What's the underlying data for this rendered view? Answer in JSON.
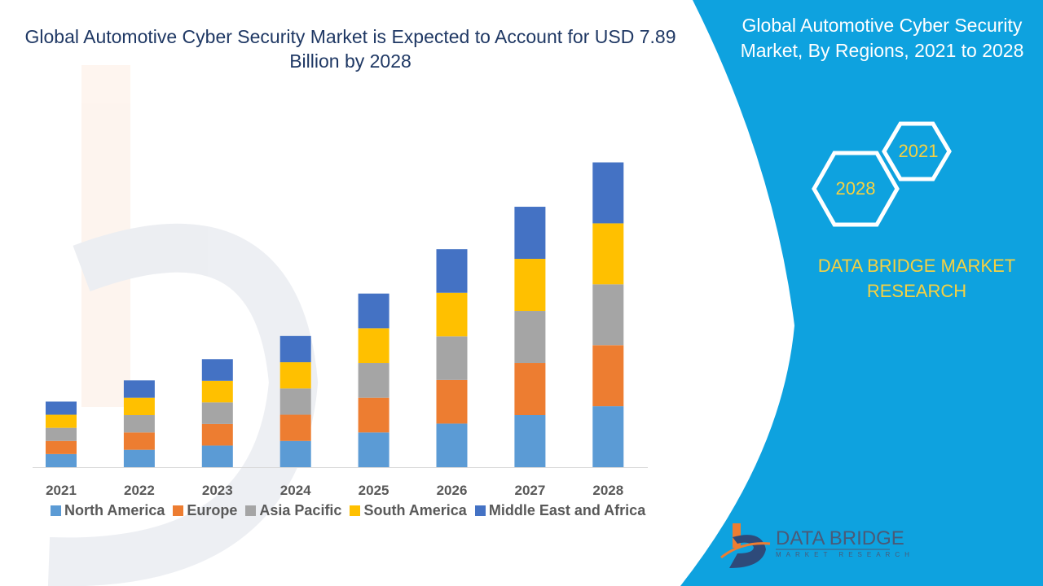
{
  "title": "Global Automotive Cyber Security Market is Expected to Account for USD 7.89 Billion by 2028",
  "side_panel": {
    "title": "Global Automotive Cyber Security Market, By Regions, 2021 to 2028",
    "hex_labels": [
      "2021",
      "2028"
    ],
    "brand": "DATA BRIDGE MARKET RESEARCH",
    "logo_text": "DATA BRIDGE",
    "logo_subtext": "MARKET RESEARCH",
    "color": "#0ea2df"
  },
  "chart_data": {
    "type": "bar",
    "stacked": true,
    "title": "Global Automotive Cyber Security Market is Expected to Account for USD 7.89 Billion by 2028",
    "categories": [
      "2021",
      "2022",
      "2023",
      "2024",
      "2025",
      "2026",
      "2027",
      "2028"
    ],
    "series": [
      {
        "name": "North America",
        "color": "#5b9bd5",
        "values": [
          0.34,
          0.45,
          0.56,
          0.68,
          0.9,
          1.13,
          1.35,
          1.58
        ]
      },
      {
        "name": "Europe",
        "color": "#ed7d31",
        "values": [
          0.34,
          0.45,
          0.56,
          0.68,
          0.9,
          1.13,
          1.35,
          1.58
        ]
      },
      {
        "name": "Asia Pacific",
        "color": "#a5a5a5",
        "values": [
          0.34,
          0.45,
          0.56,
          0.68,
          0.9,
          1.13,
          1.35,
          1.58
        ]
      },
      {
        "name": "South America",
        "color": "#ffc000",
        "values": [
          0.34,
          0.45,
          0.56,
          0.68,
          0.9,
          1.13,
          1.35,
          1.58
        ]
      },
      {
        "name": "Middle East and Africa",
        "color": "#4472c4",
        "values": [
          0.34,
          0.45,
          0.56,
          0.68,
          0.9,
          1.13,
          1.35,
          1.58
        ]
      }
    ],
    "legend": "bottom",
    "grid": false,
    "y_axis_shown": false
  }
}
